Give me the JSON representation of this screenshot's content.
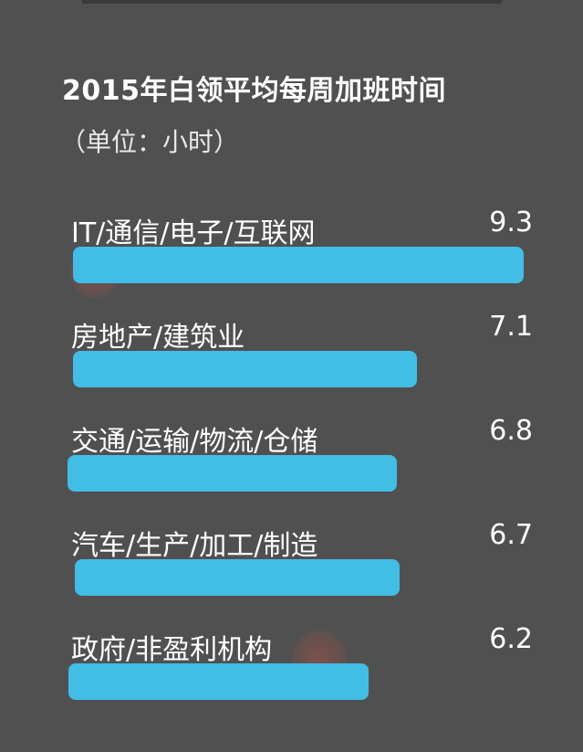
{
  "title": "2015年白领平均每周加班时间",
  "unit": "（单位：小时）",
  "colors": {
    "background": "#505050",
    "bar": "#41bde6",
    "text": "#ffffff"
  },
  "chart_data": {
    "type": "bar",
    "orientation": "horizontal",
    "title": "2015年白领平均每周加班时间",
    "subtitle": "（单位：小时）",
    "xlabel": "",
    "ylabel": "",
    "grid": false,
    "legend": "none",
    "xlim": [
      0,
      9.3
    ],
    "categories": [
      "IT/通信/电子/互联网",
      "房地产/建筑业",
      "交通/运输/物流/仓储",
      "汽车/生产/加工/制造",
      "政府/非盈利机构"
    ],
    "values": [
      9.3,
      7.1,
      6.8,
      6.7,
      6.2
    ],
    "value_labels": [
      "9.3",
      "7.1",
      "6.8",
      "6.7",
      "6.2"
    ]
  }
}
